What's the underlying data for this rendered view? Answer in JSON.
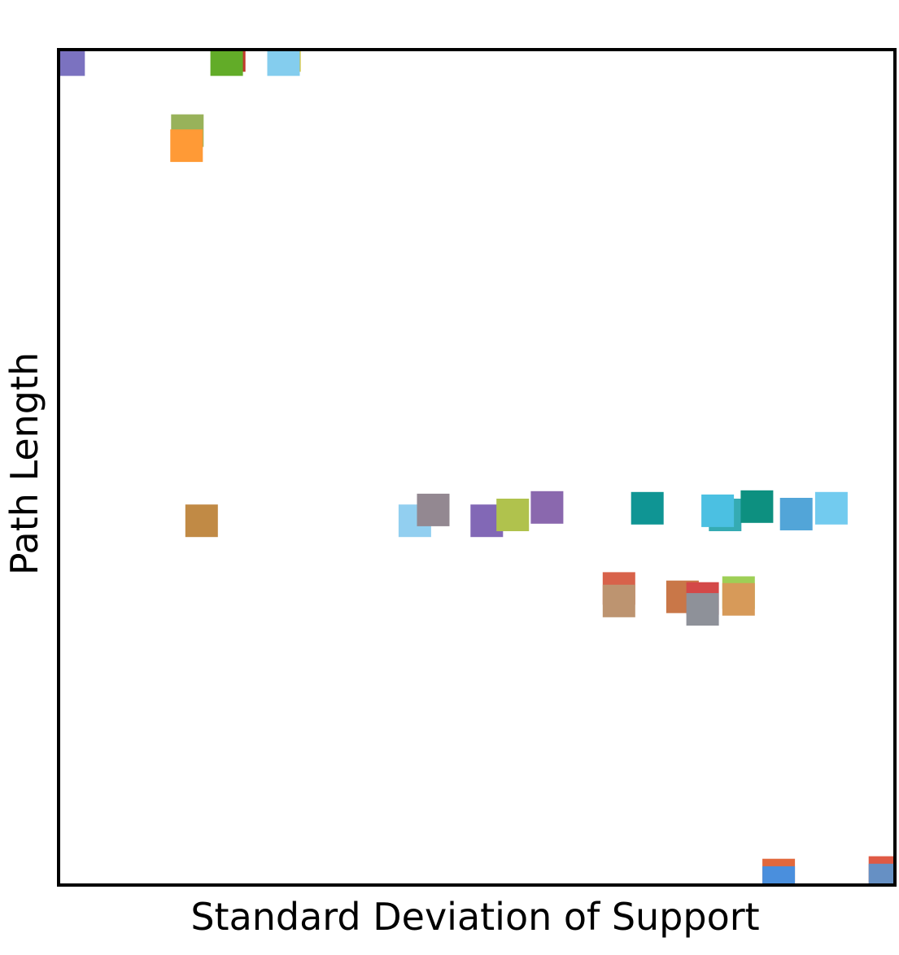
{
  "chart_data": {
    "type": "scatter",
    "title": "",
    "xlabel": "Standard Deviation of Support",
    "ylabel": "Path Length",
    "xlim": [
      0,
      1
    ],
    "ylim": [
      0,
      1
    ],
    "grid": false,
    "ticks": false,
    "legend": "none",
    "marker": "square",
    "points": [
      {
        "x": 0.012,
        "y": 0.988,
        "color": "#7b72c0"
      },
      {
        "x": 0.204,
        "y": 0.993,
        "color": "#c0392b"
      },
      {
        "x": 0.201,
        "y": 0.988,
        "color": "#62ac28"
      },
      {
        "x": 0.27,
        "y": 0.993,
        "color": "#d4c02a"
      },
      {
        "x": 0.269,
        "y": 0.988,
        "color": "#84cdee"
      },
      {
        "x": 0.154,
        "y": 0.903,
        "color": "#98b25a"
      },
      {
        "x": 0.153,
        "y": 0.885,
        "color": "#ff9a36"
      },
      {
        "x": 0.171,
        "y": 0.436,
        "color": "#c18a45"
      },
      {
        "x": 0.426,
        "y": 0.436,
        "color": "#92cff0"
      },
      {
        "x": 0.448,
        "y": 0.449,
        "color": "#938891"
      },
      {
        "x": 0.512,
        "y": 0.436,
        "color": "#8268b6"
      },
      {
        "x": 0.543,
        "y": 0.443,
        "color": "#b0c24d"
      },
      {
        "x": 0.584,
        "y": 0.452,
        "color": "#8a68ae"
      },
      {
        "x": 0.704,
        "y": 0.451,
        "color": "#0f9594"
      },
      {
        "x": 0.797,
        "y": 0.443,
        "color": "#35abb3"
      },
      {
        "x": 0.788,
        "y": 0.448,
        "color": "#4bc0e2"
      },
      {
        "x": 0.835,
        "y": 0.453,
        "color": "#0d9080"
      },
      {
        "x": 0.882,
        "y": 0.444,
        "color": "#52a5d8"
      },
      {
        "x": 0.924,
        "y": 0.451,
        "color": "#72cbef"
      },
      {
        "x": 0.67,
        "y": 0.355,
        "color": "#d8624a"
      },
      {
        "x": 0.67,
        "y": 0.34,
        "color": "#bd9470"
      },
      {
        "x": 0.746,
        "y": 0.345,
        "color": "#c97748"
      },
      {
        "x": 0.77,
        "y": 0.343,
        "color": "#d44848"
      },
      {
        "x": 0.77,
        "y": 0.33,
        "color": "#8e9199"
      },
      {
        "x": 0.813,
        "y": 0.35,
        "color": "#9ecf56"
      },
      {
        "x": 0.813,
        "y": 0.342,
        "color": "#d79a59"
      },
      {
        "x": 0.861,
        "y": 0.012,
        "color": "#e2683c"
      },
      {
        "x": 0.861,
        "y": 0.003,
        "color": "#4a8fdd"
      },
      {
        "x": 0.988,
        "y": 0.015,
        "color": "#e05a45"
      },
      {
        "x": 0.988,
        "y": 0.006,
        "color": "#6690c4"
      }
    ]
  }
}
